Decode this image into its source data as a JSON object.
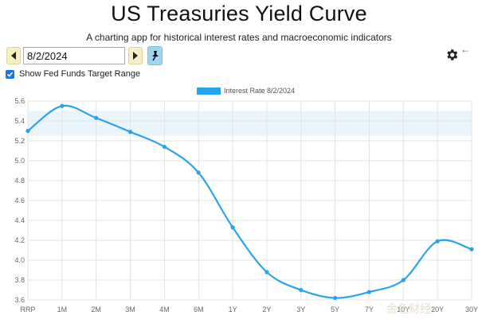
{
  "header": {
    "title": "US Treasuries Yield Curve",
    "subtitle": "A charting app for historical interest rates and macroeconomic indicators"
  },
  "controls": {
    "date_value": "8/2/2024",
    "checkbox_label": "Show Fed Funds Target Range",
    "checkbox_checked": true
  },
  "icons": {
    "prev": "triangle-left-icon",
    "next": "triangle-right-icon",
    "pin": "pin-icon",
    "settings": "gear-icon",
    "back": "arrow-left-icon"
  },
  "colors": {
    "series": "#2aa3ee",
    "fed_band": "#eaf4fb",
    "prev_button": "#f6efc4",
    "pin_button": "#9fd5f3",
    "checkbox": "#1a73e8"
  },
  "watermark": "金色财经",
  "chart_data": {
    "type": "line",
    "categories": [
      "RRP",
      "1M",
      "2M",
      "3M",
      "4M",
      "6M",
      "1Y",
      "2Y",
      "3Y",
      "5Y",
      "7Y",
      "10Y",
      "20Y",
      "30Y"
    ],
    "series": [
      {
        "name": "Interest Rate 8/2/2024",
        "values": [
          5.3,
          5.55,
          5.43,
          5.29,
          5.14,
          4.88,
          4.33,
          3.88,
          3.7,
          3.62,
          3.68,
          3.8,
          4.19,
          4.11
        ]
      }
    ],
    "ylim": [
      3.6,
      5.6
    ],
    "yticks": [
      "5.6",
      "5.4",
      "5.2",
      "5.0",
      "4.8",
      "4.6",
      "4.4",
      "4.2",
      "4.0",
      "3.8",
      "3.6"
    ],
    "fed_funds_target_range": [
      5.25,
      5.5
    ],
    "grid": true,
    "legend": "top-center"
  }
}
